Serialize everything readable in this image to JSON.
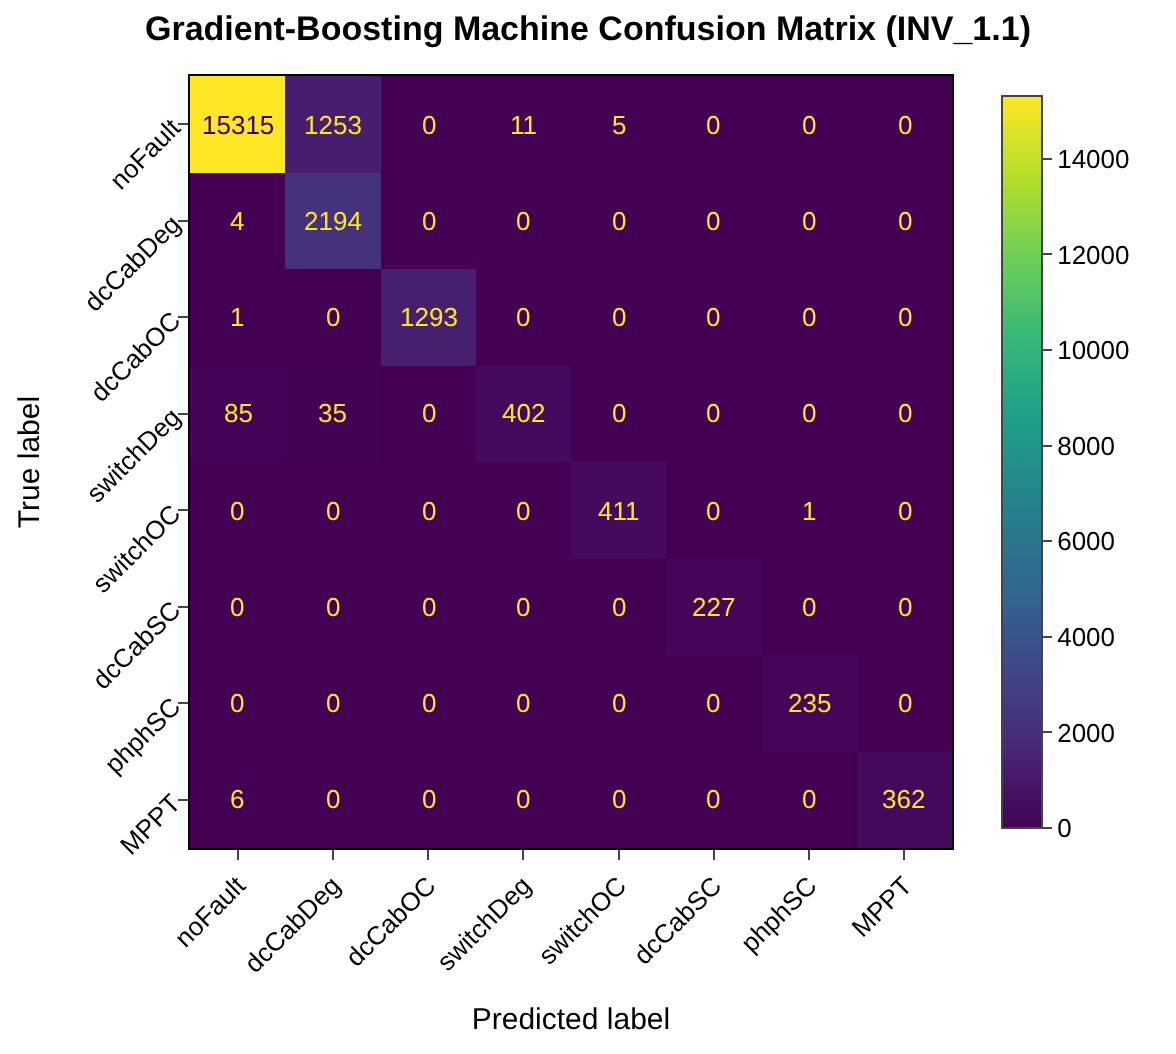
{
  "chart_data": {
    "type": "heatmap",
    "title": "Gradient-Boosting Machine Confusion Matrix (INV_1.1)",
    "xlabel": "Predicted label",
    "ylabel": "True label",
    "categories": [
      "noFault",
      "dcCabDeg",
      "dcCabOC",
      "switchDeg",
      "switchOC",
      "dcCabSC",
      "phphSC",
      "MPPT"
    ],
    "y_categories": [
      "noFault",
      "dcCabDeg",
      "dcCabOC",
      "switchDeg",
      "switchOC",
      "dcCabSC",
      "phphSC",
      "MPPT"
    ],
    "cells": [
      [
        15315,
        1253,
        0,
        11,
        5,
        0,
        0,
        0
      ],
      [
        4,
        2194,
        0,
        0,
        0,
        0,
        0,
        0
      ],
      [
        1,
        0,
        1293,
        0,
        0,
        0,
        0,
        0
      ],
      [
        85,
        35,
        0,
        402,
        0,
        0,
        0,
        0
      ],
      [
        0,
        0,
        0,
        0,
        411,
        0,
        1,
        0
      ],
      [
        0,
        0,
        0,
        0,
        0,
        227,
        0,
        0
      ],
      [
        0,
        0,
        0,
        0,
        0,
        0,
        235,
        0
      ],
      [
        6,
        0,
        0,
        0,
        0,
        0,
        0,
        362
      ]
    ],
    "clim": [
      0,
      15315
    ],
    "cticks": [
      0,
      2000,
      4000,
      6000,
      8000,
      10000,
      12000,
      14000
    ],
    "data_labels": true
  }
}
